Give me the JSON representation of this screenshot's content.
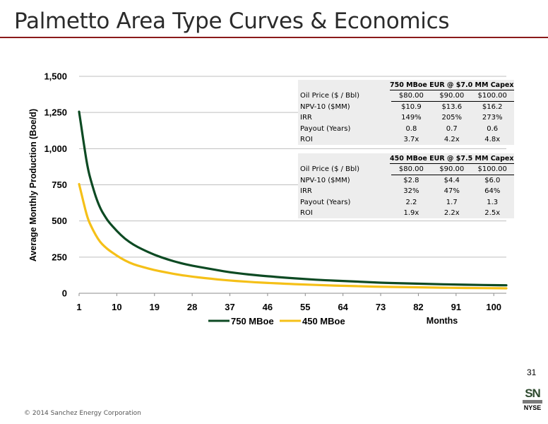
{
  "slide": {
    "title": "Palmetto Area Type Curves & Economics",
    "page_number": "31",
    "footer": "© 2014 Sanchez Energy Corporation",
    "logo_top": "SN",
    "logo_bottom": "NYSE"
  },
  "colors": {
    "series_750": "#0d4a23",
    "series_450": "#f5c018",
    "title_rule": "#8b1a1a",
    "grid": "#bfbfbf"
  },
  "chart_data": {
    "type": "line",
    "ylabel": "Average Monthly Production (Boe/d)",
    "xlabel": "Months",
    "ylim": [
      0,
      1500
    ],
    "xlim": [
      1,
      103
    ],
    "y_ticks": [
      "0",
      "250",
      "500",
      "750",
      "1,000",
      "1,250",
      "1,500"
    ],
    "y_tick_values": [
      0,
      250,
      500,
      750,
      1000,
      1250,
      1500
    ],
    "x_ticks": [
      "1",
      "10",
      "19",
      "28",
      "37",
      "46",
      "55",
      "64",
      "73",
      "82",
      "91",
      "100"
    ],
    "x_tick_values": [
      1,
      10,
      19,
      28,
      37,
      46,
      55,
      64,
      73,
      82,
      91,
      100
    ],
    "grid": "horizontal",
    "legend_position": "bottom",
    "series": [
      {
        "name": "750 MBoe",
        "x": [
          1,
          2,
          3,
          4,
          5,
          6,
          7,
          8,
          10,
          12,
          14,
          16,
          19,
          22,
          25,
          28,
          31,
          34,
          37,
          40,
          43,
          46,
          50,
          55,
          60,
          64,
          70,
          73,
          80,
          85,
          91,
          95,
          100,
          103
        ],
        "y": [
          1255,
          1060,
          870,
          760,
          665,
          590,
          540,
          495,
          430,
          375,
          335,
          305,
          265,
          235,
          210,
          190,
          175,
          160,
          145,
          135,
          125,
          118,
          108,
          98,
          90,
          85,
          77,
          73,
          68,
          64,
          60,
          58,
          56,
          55
        ]
      },
      {
        "name": "450 MBoe",
        "x": [
          1,
          2,
          3,
          4,
          5,
          6,
          7,
          8,
          10,
          12,
          14,
          16,
          19,
          22,
          25,
          28,
          31,
          34,
          37,
          40,
          43,
          46,
          50,
          55,
          60,
          64,
          70,
          73,
          80,
          85,
          91,
          95,
          100,
          103
        ],
        "y": [
          755,
          635,
          520,
          455,
          400,
          355,
          325,
          300,
          260,
          225,
          200,
          183,
          160,
          143,
          127,
          115,
          105,
          96,
          88,
          82,
          76,
          72,
          66,
          60,
          55,
          52,
          47,
          45,
          42,
          40,
          37,
          36,
          35,
          34
        ]
      }
    ]
  },
  "tables": [
    {
      "title": "750 MBoe EUR @ $7.0 MM Capex",
      "header": [
        "Oil Price ($ / Bbl)",
        "$80.00",
        "$90.00",
        "$100.00"
      ],
      "rows": [
        [
          "NPV-10 ($MM)",
          "$10.9",
          "$13.6",
          "$16.2"
        ],
        [
          "IRR",
          "149%",
          "205%",
          "273%"
        ],
        [
          "Payout (Years)",
          "0.8",
          "0.7",
          "0.6"
        ],
        [
          "ROI",
          "3.7x",
          "4.2x",
          "4.8x"
        ]
      ]
    },
    {
      "title": "450 MBoe EUR @ $7.5 MM Capex",
      "header": [
        "Oil Price ($ / Bbl)",
        "$80.00",
        "$90.00",
        "$100.00"
      ],
      "rows": [
        [
          "NPV-10 ($MM)",
          "$2.8",
          "$4.4",
          "$6.0"
        ],
        [
          "IRR",
          "32%",
          "47%",
          "64%"
        ],
        [
          "Payout (Years)",
          "2.2",
          "1.7",
          "1.3"
        ],
        [
          "ROI",
          "1.9x",
          "2.2x",
          "2.5x"
        ]
      ]
    }
  ]
}
